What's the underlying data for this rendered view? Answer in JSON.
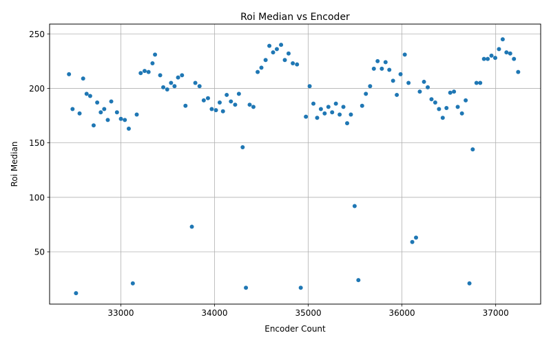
{
  "chart_data": {
    "type": "scatter",
    "title": "Roi Median vs Encoder",
    "xlabel": "Encoder Count",
    "ylabel": "Roi Median",
    "xlim": [
      32240,
      37480
    ],
    "ylim": [
      2,
      259
    ],
    "x_ticks": [
      33000,
      34000,
      35000,
      36000,
      37000
    ],
    "x_tick_labels": [
      "33000",
      "34000",
      "35000",
      "36000",
      "37000"
    ],
    "y_ticks": [
      50,
      100,
      150,
      200,
      250
    ],
    "y_tick_labels": [
      "50",
      "100",
      "150",
      "200",
      "250"
    ],
    "grid": true,
    "legend": "none",
    "marker_color": "#1f77b4",
    "series": [
      {
        "points": [
          [
            32447,
            213
          ],
          [
            32485,
            181
          ],
          [
            32522,
            12
          ],
          [
            32560,
            177
          ],
          [
            32598,
            209
          ],
          [
            32635,
            195
          ],
          [
            32673,
            193
          ],
          [
            32710,
            166
          ],
          [
            32748,
            187
          ],
          [
            32786,
            178
          ],
          [
            32823,
            181
          ],
          [
            32861,
            171
          ],
          [
            32898,
            188
          ],
          [
            32959,
            178
          ],
          [
            33001,
            172
          ],
          [
            33043,
            171
          ],
          [
            33085,
            163
          ],
          [
            33128,
            21
          ],
          [
            33170,
            176
          ],
          [
            33212,
            214
          ],
          [
            33254,
            216
          ],
          [
            33296,
            215
          ],
          [
            33338,
            223
          ],
          [
            33365,
            231
          ],
          [
            33420,
            212
          ],
          [
            33453,
            201
          ],
          [
            33495,
            199
          ],
          [
            33536,
            205
          ],
          [
            33573,
            202
          ],
          [
            33611,
            210
          ],
          [
            33653,
            212
          ],
          [
            33690,
            184
          ],
          [
            33758,
            73
          ],
          [
            33795,
            205
          ],
          [
            33840,
            202
          ],
          [
            33885,
            189
          ],
          [
            33930,
            191
          ],
          [
            33970,
            181
          ],
          [
            34015,
            180
          ],
          [
            34055,
            187
          ],
          [
            34090,
            179
          ],
          [
            34130,
            194
          ],
          [
            34175,
            188
          ],
          [
            34220,
            185
          ],
          [
            34260,
            195
          ],
          [
            34300,
            146
          ],
          [
            34335,
            17
          ],
          [
            34375,
            185
          ],
          [
            34415,
            183
          ],
          [
            34460,
            215
          ],
          [
            34500,
            219
          ],
          [
            34545,
            226
          ],
          [
            34585,
            239
          ],
          [
            34625,
            233
          ],
          [
            34665,
            236
          ],
          [
            34710,
            240
          ],
          [
            34750,
            226
          ],
          [
            34790,
            232
          ],
          [
            34835,
            223
          ],
          [
            34880,
            222
          ],
          [
            34920,
            17
          ],
          [
            34975,
            174
          ],
          [
            35015,
            202
          ],
          [
            35055,
            186
          ],
          [
            35095,
            173
          ],
          [
            35135,
            181
          ],
          [
            35175,
            177
          ],
          [
            35215,
            183
          ],
          [
            35255,
            178
          ],
          [
            35295,
            186
          ],
          [
            35335,
            176
          ],
          [
            35375,
            183
          ],
          [
            35415,
            168
          ],
          [
            35455,
            176
          ],
          [
            35495,
            92
          ],
          [
            35535,
            24
          ],
          [
            35575,
            184
          ],
          [
            35615,
            195
          ],
          [
            35660,
            202
          ],
          [
            35700,
            218
          ],
          [
            35740,
            225
          ],
          [
            35785,
            218
          ],
          [
            35825,
            224
          ],
          [
            35865,
            217
          ],
          [
            35905,
            207
          ],
          [
            35945,
            194
          ],
          [
            35985,
            213
          ],
          [
            36030,
            231
          ],
          [
            36070,
            205
          ],
          [
            36110,
            59
          ],
          [
            36150,
            63
          ],
          [
            36190,
            197
          ],
          [
            36235,
            206
          ],
          [
            36275,
            201
          ],
          [
            36315,
            190
          ],
          [
            36355,
            187
          ],
          [
            36395,
            181
          ],
          [
            36435,
            173
          ],
          [
            36475,
            182
          ],
          [
            36515,
            196
          ],
          [
            36555,
            197
          ],
          [
            36595,
            183
          ],
          [
            36640,
            177
          ],
          [
            36680,
            189
          ],
          [
            36720,
            21
          ],
          [
            36755,
            144
          ],
          [
            36795,
            205
          ],
          [
            36835,
            205
          ],
          [
            36875,
            227
          ],
          [
            36915,
            227
          ],
          [
            36955,
            230
          ],
          [
            36995,
            228
          ],
          [
            37035,
            236
          ],
          [
            37075,
            245
          ],
          [
            37115,
            233
          ],
          [
            37155,
            232
          ],
          [
            37195,
            227
          ],
          [
            37240,
            215
          ]
        ]
      }
    ]
  }
}
